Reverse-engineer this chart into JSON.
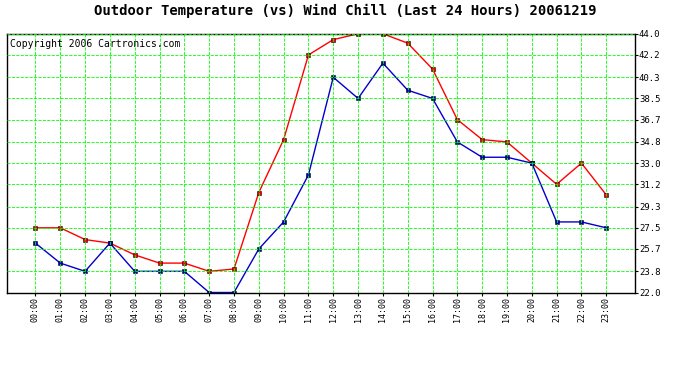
{
  "title": "Outdoor Temperature (vs) Wind Chill (Last 24 Hours) 20061219",
  "copyright": "Copyright 2006 Cartronics.com",
  "x_labels": [
    "00:00",
    "01:00",
    "02:00",
    "03:00",
    "04:00",
    "05:00",
    "06:00",
    "07:00",
    "08:00",
    "09:00",
    "10:00",
    "11:00",
    "12:00",
    "13:00",
    "14:00",
    "15:00",
    "16:00",
    "17:00",
    "18:00",
    "19:00",
    "20:00",
    "21:00",
    "22:00",
    "23:00"
  ],
  "temp_red": [
    27.5,
    27.5,
    26.5,
    26.2,
    25.2,
    24.5,
    24.5,
    23.8,
    24.0,
    30.5,
    35.0,
    42.2,
    43.5,
    44.0,
    44.0,
    43.2,
    41.0,
    36.7,
    35.0,
    34.8,
    33.0,
    31.2,
    33.0,
    30.3
  ],
  "wind_chill_blue": [
    26.2,
    24.5,
    23.8,
    26.2,
    23.8,
    23.8,
    23.8,
    22.0,
    22.0,
    25.7,
    28.0,
    32.0,
    40.3,
    38.5,
    41.5,
    39.2,
    38.5,
    34.8,
    33.5,
    33.5,
    33.0,
    28.0,
    28.0,
    27.5
  ],
  "ylim": [
    22.0,
    44.0
  ],
  "yticks": [
    22.0,
    23.8,
    25.7,
    27.5,
    29.3,
    31.2,
    33.0,
    34.8,
    36.7,
    38.5,
    40.3,
    42.2,
    44.0
  ],
  "bg_color": "#ffffff",
  "grid_color": "#00ff00",
  "plot_bg": "#ffffff",
  "red_color": "#ff0000",
  "blue_color": "#0000cc",
  "title_fontsize": 10,
  "copyright_fontsize": 7
}
